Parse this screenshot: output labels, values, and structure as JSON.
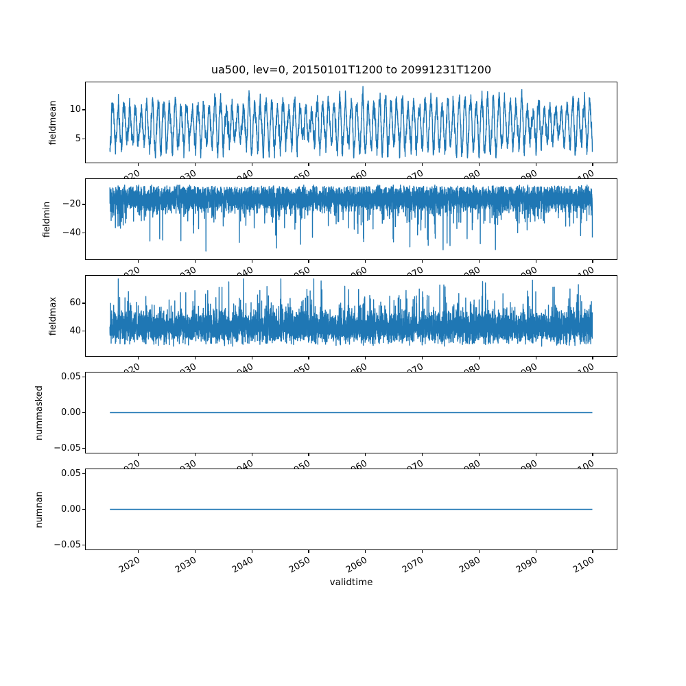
{
  "figure": {
    "title": "ua500, lev=0, 20150101T1200 to 20991231T1200",
    "xlabel": "validtime",
    "background_color": "#ffffff",
    "axes_edge_color": "#000000",
    "text_color": "#000000",
    "line_color": "#1f77b4",
    "xlim": [
      2010.75,
      2104.25
    ],
    "x_ticks": [
      2020,
      2030,
      2040,
      2050,
      2060,
      2070,
      2080,
      2090,
      2100
    ],
    "x_tick_rotation_deg": 30,
    "grid": "off",
    "legend": "none"
  },
  "chart_data": [
    {
      "type": "line",
      "ylabel": "fieldmean",
      "x_start": 2015.0,
      "x_end": 2099.96,
      "ylim": [
        1.0,
        14.65
      ],
      "yticks": [
        {
          "value": 5,
          "label": "5"
        },
        {
          "value": 10,
          "label": "10"
        }
      ],
      "series": [
        {
          "name": "fieldmean",
          "color": "#1f77b4",
          "pattern": "dense annual seasonal oscillation (~85 cycles), peaks 10-13.9, troughs 2-5.5, mean ~7.4",
          "approx_mean": 7.4,
          "approx_min": 2.0,
          "approx_max": 13.9,
          "gen": {
            "kind": "seasonal",
            "n": 5200,
            "base": 7.4,
            "amp_min": 2.0,
            "amp_max": 4.5,
            "noise_sd": 0.62,
            "clamp": [
              1.8,
              14.05
            ],
            "seed": 101,
            "lw": 1.4
          }
        }
      ]
    },
    {
      "type": "line",
      "ylabel": "fieldmin",
      "x_start": 2015.0,
      "x_end": 2099.96,
      "ylim": [
        -58.3,
        -2.4
      ],
      "yticks": [
        {
          "value": -40,
          "label": "−40"
        },
        {
          "value": -20,
          "label": "−20"
        }
      ],
      "series": [
        {
          "name": "fieldmin",
          "color": "#1f77b4",
          "pattern": "dense noisy band -27..-7 with frequent downward spikes to -35..-50, extremes near -55",
          "approx_mean": -16,
          "approx_min": -55,
          "approx_max": -7,
          "gen": {
            "kind": "noisy_extreme",
            "n": 6200,
            "base": -16.0,
            "sd": 4.2,
            "dir": -1,
            "soft": -8.5,
            "spike_p": 0.04,
            "spike_lo": 4,
            "spike_hi": 20,
            "rare_p": 0.0045,
            "rare_lo": 22,
            "rare_hi": 36,
            "clamp": [
              -55.5,
              -6.6
            ],
            "seed": 202,
            "lw": 1.4
          }
        }
      ]
    },
    {
      "type": "line",
      "ylabel": "fieldmax",
      "x_start": 2015.0,
      "x_end": 2099.96,
      "ylim": [
        22.2,
        79.5
      ],
      "yticks": [
        {
          "value": 40,
          "label": "40"
        },
        {
          "value": 60,
          "label": "60"
        }
      ],
      "series": [
        {
          "name": "fieldmax",
          "color": "#1f77b4",
          "pattern": "dense noisy band 32..54 with frequent upward spikes to 55..75, extremes near 77",
          "approx_mean": 43,
          "approx_min": 29,
          "approx_max": 77,
          "gen": {
            "kind": "noisy_extreme",
            "n": 6200,
            "base": 42.5,
            "sd": 5.2,
            "dir": 1,
            "soft": 31.5,
            "spike_p": 0.05,
            "spike_lo": 4,
            "spike_hi": 18,
            "rare_p": 0.005,
            "rare_lo": 18,
            "rare_hi": 32,
            "clamp": [
              29.2,
              77.3
            ],
            "seed": 303,
            "lw": 1.4
          }
        }
      ]
    },
    {
      "type": "line",
      "ylabel": "nummasked",
      "x_start": 2015.0,
      "x_end": 2099.96,
      "ylim": [
        -0.0565,
        0.0565
      ],
      "yticks": [
        {
          "value": -0.05,
          "label": "−0.05"
        },
        {
          "value": 0,
          "label": "0.00"
        },
        {
          "value": 0.05,
          "label": "0.05"
        }
      ],
      "series": [
        {
          "name": "nummasked",
          "color": "#1f77b4",
          "pattern": "constant zero line",
          "approx_mean": 0,
          "approx_min": 0,
          "approx_max": 0,
          "gen": {
            "kind": "constant",
            "n": 2,
            "value": 0,
            "seed": 1,
            "lw": 1.6
          }
        }
      ]
    },
    {
      "type": "line",
      "ylabel": "numnan",
      "x_start": 2015.0,
      "x_end": 2099.96,
      "ylim": [
        -0.0565,
        0.0565
      ],
      "yticks": [
        {
          "value": -0.05,
          "label": "−0.05"
        },
        {
          "value": 0,
          "label": "0.00"
        },
        {
          "value": 0.05,
          "label": "0.05"
        }
      ],
      "series": [
        {
          "name": "numnan",
          "color": "#1f77b4",
          "pattern": "constant zero line",
          "approx_mean": 0,
          "approx_min": 0,
          "approx_max": 0,
          "gen": {
            "kind": "constant",
            "n": 2,
            "value": 0,
            "seed": 2,
            "lw": 1.6
          }
        }
      ]
    }
  ]
}
